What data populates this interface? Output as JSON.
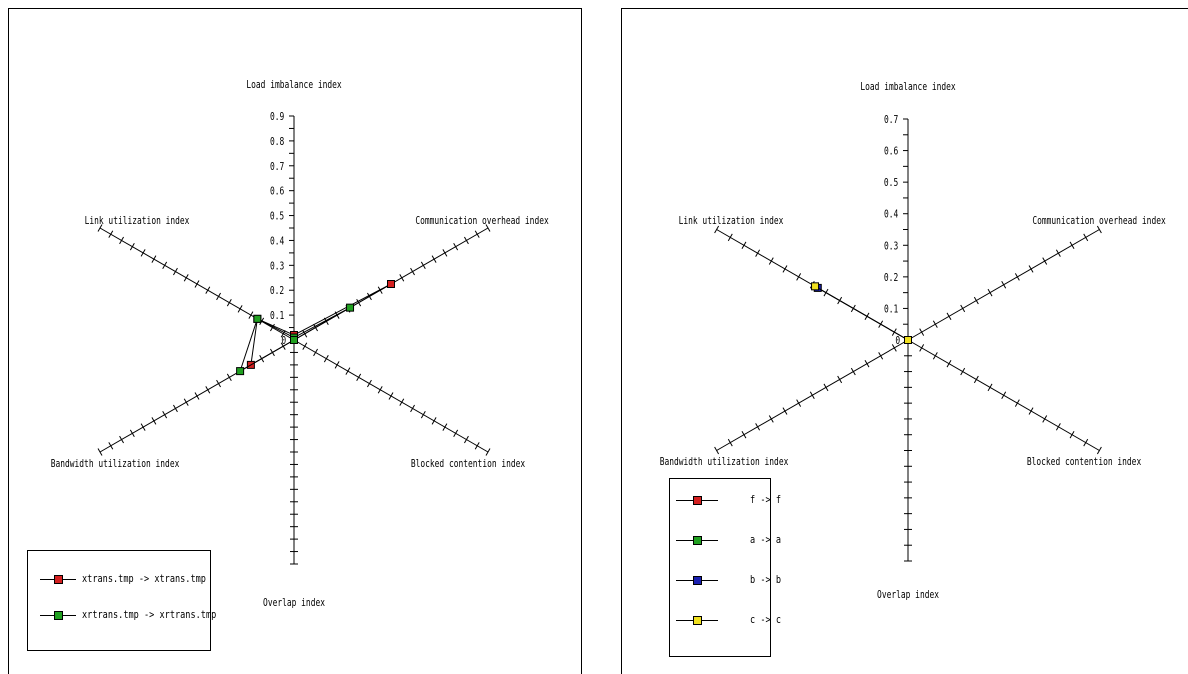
{
  "chart_data": [
    {
      "type": "radar",
      "axes": [
        "Load imbalance index",
        "Communication overhead index",
        "Blocked contention index",
        "Overlap index",
        "Bandwidth utilization index",
        "Link utilization index"
      ],
      "rmax": 0.9,
      "tick_step": 0.05,
      "tick_labels": [
        "0",
        "0.1",
        "0.2",
        "0.3",
        "0.4",
        "0.5",
        "0.6",
        "0.7",
        "0.8",
        "0.9"
      ],
      "series": [
        {
          "name": "xtrans.tmp -> xtrans.tmp",
          "color": "#d42020",
          "values": [
            0.02,
            0.45,
            0.0,
            0.0,
            0.2,
            0.17
          ]
        },
        {
          "name": "xrtrans.tmp -> xrtrans.tmp",
          "color": "#20a020",
          "values": [
            0.01,
            0.26,
            0.0,
            0.0,
            0.25,
            0.17
          ]
        }
      ]
    },
    {
      "type": "radar",
      "axes": [
        "Load imbalance index",
        "Communication overhead index",
        "Blocked contention index",
        "Overlap index",
        "Bandwidth utilization index",
        "Link utilization index"
      ],
      "rmax": 0.7,
      "tick_step": 0.05,
      "tick_labels": [
        "0",
        "0.1",
        "0.2",
        "0.3",
        "0.4",
        "0.5",
        "0.6",
        "0.7"
      ],
      "series": [
        {
          "name": "f -> f",
          "color": "#d42020",
          "values": [
            0,
            0,
            0,
            0,
            0,
            0
          ]
        },
        {
          "name": "a -> a",
          "color": "#20a020",
          "values": [
            0,
            0,
            0,
            0,
            0,
            0
          ]
        },
        {
          "name": "b -> b",
          "color": "#1a20b0",
          "values": [
            0,
            0,
            0,
            0,
            0,
            0.33
          ]
        },
        {
          "name": "c -> c",
          "color": "#f0e020",
          "values": [
            0,
            0,
            0,
            0,
            0,
            0.34
          ]
        }
      ]
    }
  ]
}
